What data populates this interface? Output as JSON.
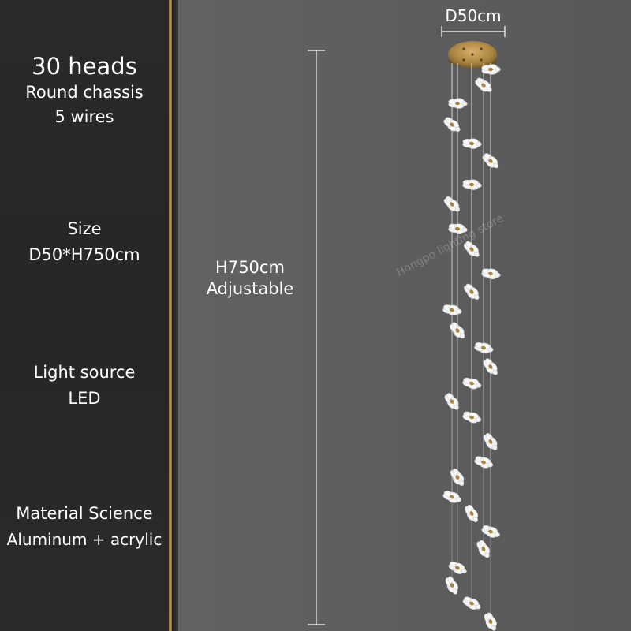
{
  "specs": {
    "heads": "30 heads",
    "chassis": "Round chassis",
    "wires": "5 wires",
    "size_label": "Size",
    "size_value": "D50*H750cm",
    "light_label": "Light source",
    "light_value": "LED",
    "material_label": "Material Science",
    "material_value": "Aluminum + acrylic"
  },
  "dimensions": {
    "diameter": "D50cm",
    "height": "H750cm",
    "height_note": "Adjustable"
  },
  "watermark": "Hongpo lighting store",
  "colors": {
    "left_panel": "#282828",
    "background": "#5d5d5d",
    "gold_accent": "#c9a35e",
    "text": "#ffffff"
  }
}
